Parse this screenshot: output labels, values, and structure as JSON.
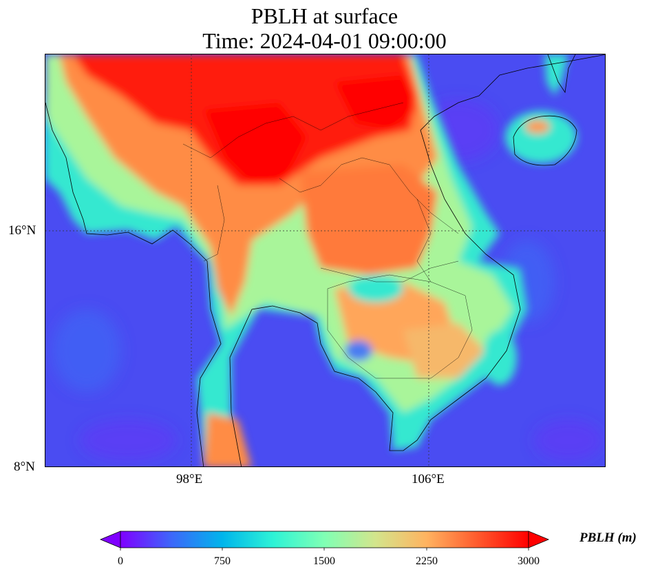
{
  "title_line1": "PBLH at surface",
  "title_line2": "Time: 2024-04-01 09:00:00",
  "lat_labels": [
    "16°N",
    "8°N"
  ],
  "lon_labels": [
    "98°E",
    "106°E"
  ],
  "colorbar": {
    "label": "PBLH (m)",
    "ticks": [
      "0",
      "750",
      "1500",
      "2250",
      "3000"
    ],
    "colors": [
      "#7f00ff",
      "#3d67fa",
      "#00b5eb",
      "#2ef3d6",
      "#80ffb4",
      "#d3e58c",
      "#ffb360",
      "#ff5a2d",
      "#ff0000"
    ]
  },
  "map": {
    "ocean_color": "#4d4df0",
    "gridline_style": "dotted"
  }
}
